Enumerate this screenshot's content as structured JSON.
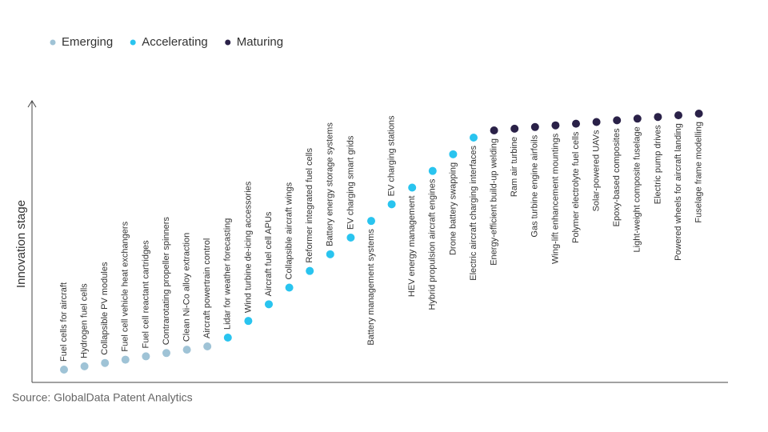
{
  "chart_data": {
    "type": "innovation-stage",
    "y_label": "Innovation stage",
    "source": "Source: GlobalData Patent Analytics",
    "series": [
      {
        "name": "Emerging",
        "color": "#9fc3d6",
        "categories": [
          "Fuel cells for aircraft",
          "Hydrogen fuel cells",
          "Collapsible PV modules",
          "Fuel cell vehicle heat exchangers",
          "Fuel cell reactant cartridges",
          "Contrarotating propeller spinners",
          "Clean Ni-Co alloy extraction",
          "Aircraft powertrain control"
        ]
      },
      {
        "name": "Accelerating",
        "color": "#29c4ef",
        "categories": [
          "Lidar for weather forecasting",
          "Wind turbine de-icing accessories",
          "Aircraft fuel cell APUs",
          "Collapsible aircraft wings",
          "Reformer integrated fuel cells",
          "Battery energy storage systems",
          "EV charging smart grids",
          "Battery management systems",
          "EV charging stations",
          "HEV energy management",
          "Hybrid propulsion aircraft engines",
          "Drone battery swapping",
          "Electric aircraft charging interfaces"
        ]
      },
      {
        "name": "Maturing",
        "color": "#2a2148",
        "categories": [
          "Energy-efficient build-up welding",
          "Ram air turbine",
          "Gas turbine engine airfoils",
          "Wing-lift enhancement mountings",
          "Polymer electrolyte fuel cells",
          "Solar-powered UAVs",
          "Epoxy-based composites",
          "Light-weight composite fuselage",
          "Electric pump drives",
          "Powered wheels for aircraft landing",
          "Fuselage frame modelling"
        ]
      }
    ]
  }
}
